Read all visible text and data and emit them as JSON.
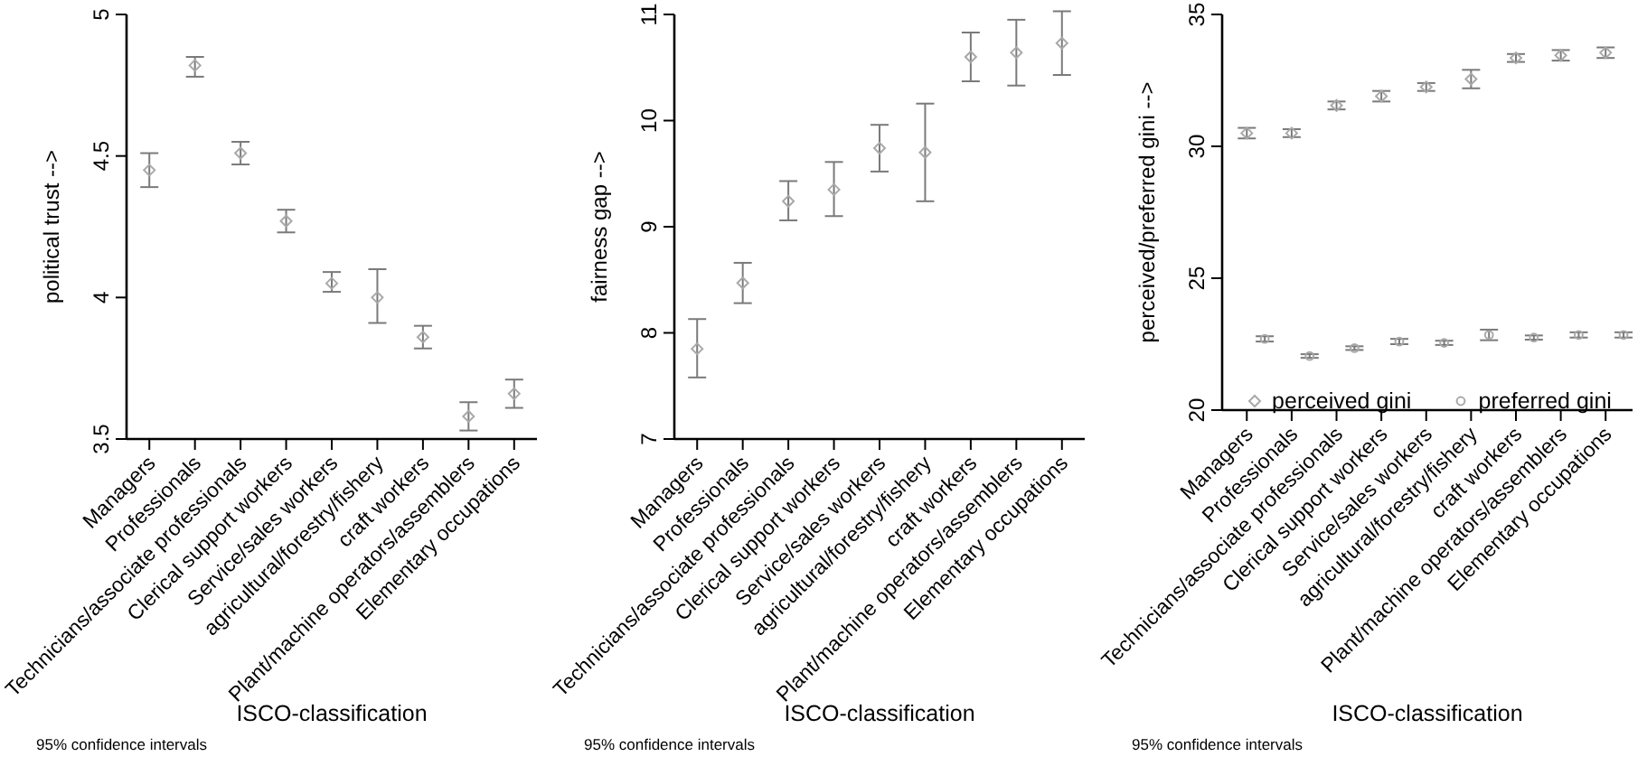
{
  "chart_data": [
    {
      "type": "scatter",
      "categories": [
        "Managers",
        "Professionals",
        "Technicians/associate professionals",
        "Clerical support workers",
        "Service/sales workers",
        "agricultural/forestry/fishery",
        "craft workers",
        "Plant/machine operators/assemblers",
        "Elementary occupations"
      ],
      "ylabel": "political trust -->",
      "xlabel": "ISCO-classification",
      "annotations": [
        "95% confidence intervals"
      ],
      "marker": "diamond",
      "ylim": [
        3.5,
        5
      ],
      "yticks": [
        3.5,
        4,
        4.5,
        5
      ],
      "grid": false,
      "legend": false,
      "series": [
        {
          "color": "#a9a9a9",
          "values": [
            4.45,
            4.82,
            4.51,
            4.27,
            4.05,
            4.0,
            3.86,
            3.58,
            3.66
          ],
          "errors": [
            [
              4.39,
              4.51
            ],
            [
              4.78,
              4.85
            ],
            [
              4.47,
              4.55
            ],
            [
              4.23,
              4.31
            ],
            [
              4.02,
              4.09
            ],
            [
              3.91,
              4.1
            ],
            [
              3.82,
              3.9
            ],
            [
              3.53,
              3.63
            ],
            [
              3.61,
              3.71
            ]
          ]
        }
      ]
    },
    {
      "type": "scatter",
      "categories": [
        "Managers",
        "Professionals",
        "Technicians/associate professionals",
        "Clerical support workers",
        "Service/sales workers",
        "agricultural/forestry/fishery",
        "craft workers",
        "Plant/machine operators/assemblers",
        "Elementary occupations"
      ],
      "ylabel": "fairness gap -->",
      "xlabel": "ISCO-classification",
      "annotations": [
        "95% confidence intervals"
      ],
      "marker": "diamond",
      "ylim": [
        7,
        11
      ],
      "yticks": [
        7,
        8,
        9,
        10,
        11
      ],
      "grid": false,
      "legend": false,
      "series": [
        {
          "color": "#a9a9a9",
          "values": [
            7.85,
            8.47,
            9.24,
            9.35,
            9.74,
            9.7,
            10.6,
            10.64,
            10.73
          ],
          "errors": [
            [
              7.58,
              8.13
            ],
            [
              8.28,
              8.66
            ],
            [
              9.06,
              9.43
            ],
            [
              9.1,
              9.61
            ],
            [
              9.52,
              9.96
            ],
            [
              9.24,
              10.16
            ],
            [
              10.37,
              10.83
            ],
            [
              10.33,
              10.95
            ],
            [
              10.43,
              11.03
            ]
          ]
        }
      ]
    },
    {
      "type": "scatter",
      "categories": [
        "Managers",
        "Professionals",
        "Technicians/associate professionals",
        "Clerical support workers",
        "Service/sales workers",
        "agricultural/forestry/fishery",
        "craft workers",
        "Plant/machine operators/assemblers",
        "Elementary occupations"
      ],
      "ylabel": "perceived/preferred gini -->",
      "xlabel": "ISCO-classification",
      "annotations": [
        "95% confidence intervals"
      ],
      "ylim": [
        20,
        35
      ],
      "yticks": [
        20,
        25,
        30,
        35
      ],
      "grid": false,
      "legend": "bottom",
      "series": [
        {
          "name": "perceived gini",
          "marker": "diamond",
          "color": "#a9a9a9",
          "values": [
            30.5,
            30.5,
            31.55,
            31.9,
            32.25,
            32.55,
            33.35,
            33.45,
            33.55
          ],
          "errors": [
            [
              30.3,
              30.7
            ],
            [
              30.35,
              30.65
            ],
            [
              31.4,
              31.7
            ],
            [
              31.7,
              32.1
            ],
            [
              32.1,
              32.4
            ],
            [
              32.2,
              32.9
            ],
            [
              33.2,
              33.5
            ],
            [
              33.25,
              33.65
            ],
            [
              33.35,
              33.75
            ]
          ]
        },
        {
          "name": "preferred gini",
          "marker": "circle",
          "color": "#a9a9a9",
          "values": [
            22.7,
            22.05,
            22.35,
            22.6,
            22.55,
            22.85,
            22.75,
            22.85,
            22.85
          ],
          "errors": [
            [
              22.6,
              22.8
            ],
            [
              21.98,
              22.12
            ],
            [
              22.28,
              22.42
            ],
            [
              22.5,
              22.7
            ],
            [
              22.47,
              22.63
            ],
            [
              22.65,
              23.05
            ],
            [
              22.67,
              22.83
            ],
            [
              22.75,
              22.95
            ],
            [
              22.75,
              22.95
            ]
          ]
        }
      ]
    }
  ]
}
